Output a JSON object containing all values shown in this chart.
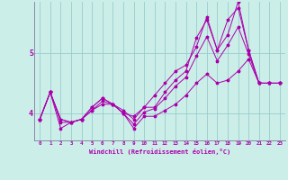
{
  "xlabel": "Windchill (Refroidissement éolien,°C)",
  "background_color": "#cceee8",
  "line_color": "#aa00aa",
  "grid_color": "#99cccc",
  "xlim": [
    -0.5,
    23.5
  ],
  "ylim": [
    3.55,
    5.85
  ],
  "yticks": [
    4,
    5
  ],
  "xticks": [
    0,
    1,
    2,
    3,
    4,
    5,
    6,
    7,
    8,
    9,
    10,
    11,
    12,
    13,
    14,
    15,
    16,
    17,
    18,
    19,
    20,
    21,
    22,
    23
  ],
  "series": [
    [
      3.9,
      4.35,
      3.75,
      3.85,
      3.9,
      4.05,
      4.15,
      4.15,
      4.0,
      3.95,
      4.1,
      4.1,
      4.35,
      4.55,
      4.7,
      5.25,
      5.55,
      5.05,
      5.3,
      5.85,
      5.05,
      4.5,
      4.5,
      4.5
    ],
    [
      3.9,
      4.35,
      3.9,
      3.85,
      3.9,
      4.1,
      4.25,
      4.15,
      4.0,
      3.75,
      3.95,
      3.95,
      4.05,
      4.15,
      4.3,
      4.5,
      4.65,
      4.5,
      4.55,
      4.7,
      4.9,
      4.5,
      4.5,
      4.5
    ],
    [
      3.9,
      4.35,
      3.9,
      3.85,
      3.9,
      4.1,
      4.25,
      4.15,
      4.05,
      3.9,
      4.1,
      4.3,
      4.5,
      4.7,
      4.8,
      5.1,
      5.6,
      5.05,
      5.55,
      5.75,
      5.05,
      4.5,
      4.5,
      4.5
    ],
    [
      3.9,
      4.35,
      3.85,
      3.85,
      3.9,
      4.05,
      4.2,
      4.15,
      4.0,
      3.82,
      4.02,
      4.08,
      4.25,
      4.45,
      4.6,
      4.95,
      5.27,
      4.87,
      5.13,
      5.43,
      4.98,
      4.5,
      4.5,
      4.5
    ]
  ],
  "figsize": [
    3.2,
    2.0
  ],
  "dpi": 100
}
